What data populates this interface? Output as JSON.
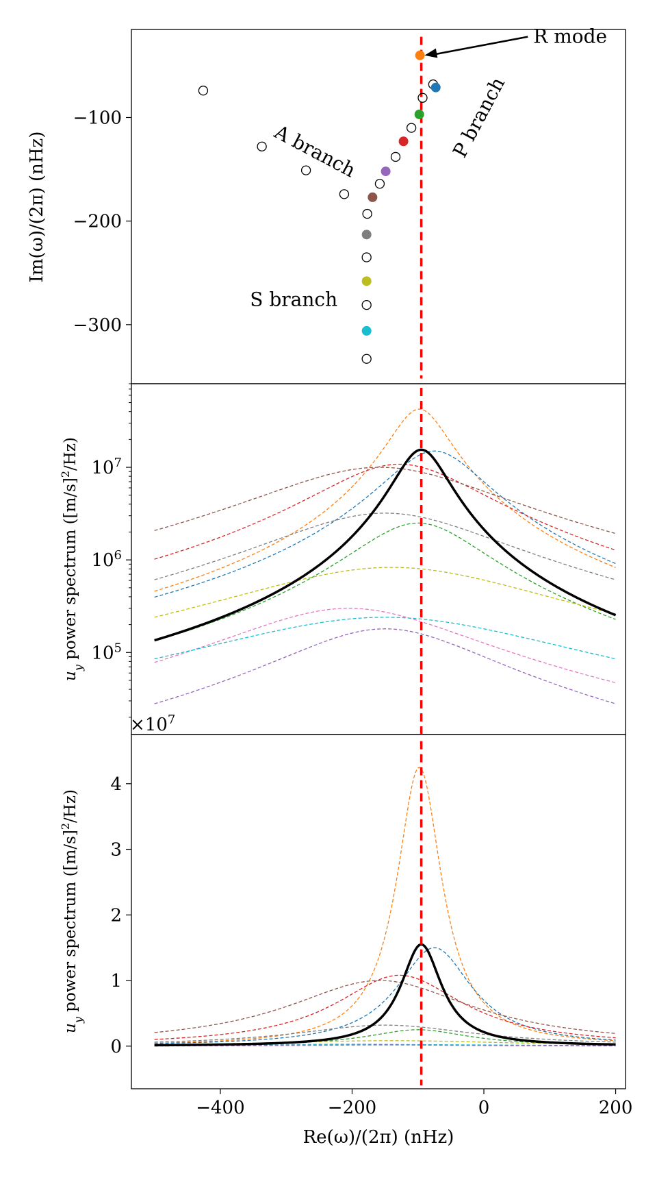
{
  "chart_data": [
    {
      "type": "scatter",
      "panel": "top",
      "title": "",
      "xlabel": "",
      "ylabel": "Im(ω)/(2π) (nHz)",
      "xlim": [
        -535,
        215
      ],
      "ylim": [
        -357,
        -15
      ],
      "yticks": [
        -100,
        -200,
        -300
      ],
      "ytick_labels": [
        "−100",
        "−200",
        "−300"
      ],
      "colored_modes": [
        {
          "x": -97,
          "y": -40,
          "color": "#ff7f0e"
        },
        {
          "x": -73,
          "y": -71,
          "color": "#1f77b4"
        },
        {
          "x": -98,
          "y": -97,
          "color": "#2ca02c"
        },
        {
          "x": -122,
          "y": -123,
          "color": "#d62728"
        },
        {
          "x": -149,
          "y": -152,
          "color": "#9467bd"
        },
        {
          "x": -169,
          "y": -177,
          "color": "#8c564b"
        },
        {
          "x": -178,
          "y": -213,
          "color": "#7f7f7f"
        },
        {
          "x": -178,
          "y": -258,
          "color": "#bcbd22"
        },
        {
          "x": -178,
          "y": -306,
          "color": "#17becf"
        }
      ],
      "open_modes": [
        {
          "x": -426,
          "y": -74
        },
        {
          "x": -337,
          "y": -128
        },
        {
          "x": -270,
          "y": -151
        },
        {
          "x": -212,
          "y": -174
        },
        {
          "x": -77,
          "y": -68
        },
        {
          "x": -93,
          "y": -81
        },
        {
          "x": -110,
          "y": -110
        },
        {
          "x": -134,
          "y": -138
        },
        {
          "x": -158,
          "y": -164
        },
        {
          "x": -177,
          "y": -193
        },
        {
          "x": -178,
          "y": -235
        },
        {
          "x": -178,
          "y": -281
        },
        {
          "x": -178,
          "y": -333
        }
      ],
      "vline_x": -95,
      "vline_color": "#ff0000",
      "annotations": [
        {
          "text": "R mode",
          "x": 75,
          "y": -28,
          "arrow_to": {
            "x": -90,
            "y": -40
          }
        },
        {
          "text": "A branch",
          "x": -320,
          "y": -118,
          "rotation": 28
        },
        {
          "text": "P branch",
          "x": -30,
          "y": -140,
          "rotation": -62
        },
        {
          "text": "S branch",
          "x": -355,
          "y": -282,
          "rotation": 0
        }
      ]
    },
    {
      "type": "line",
      "panel": "middle",
      "yscale": "log",
      "ylabel_prefix": "u",
      "ylabel_sub": "y",
      "ylabel_mid": " power spectrum ([m/s]",
      "ylabel_sup": "2",
      "ylabel_suffix": "/Hz)",
      "xlim": [
        -535,
        215
      ],
      "ylim": [
        13000,
        80000000
      ],
      "yticks": [
        100000,
        1000000,
        10000000
      ],
      "ytick_bases": [
        "10",
        "10",
        "10"
      ],
      "ytick_exps": [
        "5",
        "6",
        "7"
      ],
      "x_range": [
        -500,
        200
      ],
      "vline_x": -95,
      "vline_color": "#ff0000",
      "total": {
        "name": "total",
        "color": "#000000",
        "formula": "lorentzian",
        "center": -95,
        "halfwidth": 38,
        "peak": 15500000
      },
      "series": [
        {
          "name": "orange",
          "color": "#ff7f0e",
          "center": -98,
          "halfwidth": 42,
          "peak": 42500000
        },
        {
          "name": "blue",
          "color": "#1f77b4",
          "center": -75,
          "halfwidth": 70,
          "peak": 15000000
        },
        {
          "name": "red",
          "color": "#d62728",
          "center": -128,
          "halfwidth": 120,
          "peak": 10800000
        },
        {
          "name": "brown",
          "color": "#8c564b",
          "center": -158,
          "halfwidth": 175,
          "peak": 10000000
        },
        {
          "name": "gray",
          "color": "#7f7f7f",
          "center": -150,
          "halfwidth": 170,
          "peak": 3200000
        },
        {
          "name": "green",
          "color": "#2ca02c",
          "center": -100,
          "halfwidth": 95,
          "peak": 2500000
        },
        {
          "name": "olive",
          "color": "#bcbd22",
          "center": -140,
          "halfwidth": 230,
          "peak": 830000
        },
        {
          "name": "pink",
          "color": "#e377c2",
          "center": -205,
          "halfwidth": 175,
          "peak": 300000
        },
        {
          "name": "cyan",
          "color": "#17becf",
          "center": -150,
          "halfwidth": 260,
          "peak": 240000
        },
        {
          "name": "purple",
          "color": "#9467bd",
          "center": -150,
          "halfwidth": 150,
          "peak": 180000
        }
      ]
    },
    {
      "type": "line",
      "panel": "bottom",
      "yscale": "linear",
      "offset_label_base": "×10",
      "offset_label_exp": "7",
      "ylabel_prefix": "u",
      "ylabel_sub": "y",
      "ylabel_mid": " power spectrum ([m/s]",
      "ylabel_sup": "2",
      "ylabel_suffix": "/Hz)",
      "xlim": [
        -535,
        215
      ],
      "ylim": [
        -0.65,
        4.75
      ],
      "yticks": [
        0,
        1,
        2,
        3,
        4
      ],
      "ytick_labels": [
        "0",
        "1",
        "2",
        "3",
        "4"
      ],
      "xticks": [
        -400,
        -200,
        0,
        200
      ],
      "xtick_labels": [
        "−400",
        "−200",
        "0",
        "200"
      ],
      "xlabel": "Re(ω)/(2π) (nHz)",
      "vline_x": -95,
      "vline_color": "#ff0000",
      "note": "values in units of 1e7; same curves as middle panel"
    }
  ]
}
